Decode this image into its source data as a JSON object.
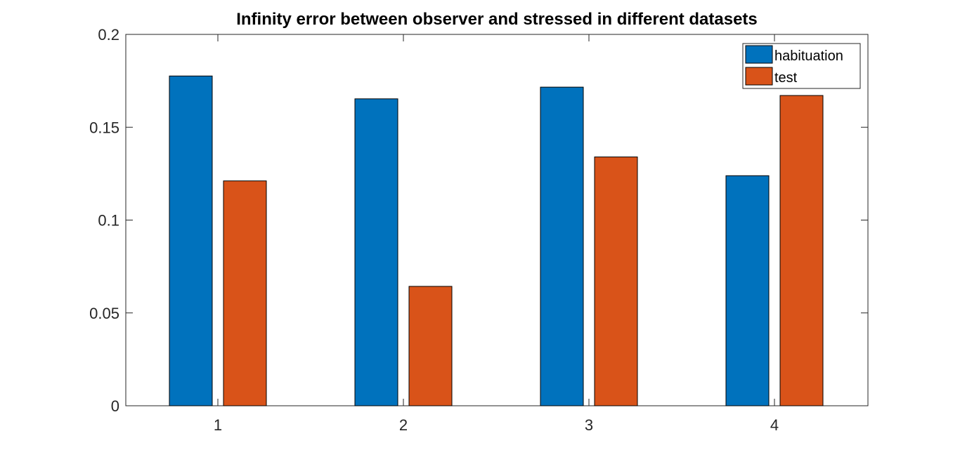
{
  "chart_data": {
    "type": "bar",
    "title": "Infinity error between observer and stressed in different datasets",
    "xlabel": "",
    "ylabel": "",
    "categories": [
      "1",
      "2",
      "3",
      "4"
    ],
    "series": [
      {
        "name": "habituation",
        "color": "#0072BD",
        "values": [
          0.1776,
          0.1653,
          0.1716,
          0.1239
        ]
      },
      {
        "name": "test",
        "color": "#D95319",
        "values": [
          0.1211,
          0.0643,
          0.134,
          0.1671
        ]
      }
    ],
    "ylim": [
      0,
      0.2
    ],
    "yticks": [
      "0",
      "0.05",
      "0.1",
      "0.15",
      "0.2"
    ],
    "ytick_values": [
      0,
      0.05,
      0.1,
      0.15,
      0.2
    ],
    "grid": false,
    "legend": "top-right"
  }
}
